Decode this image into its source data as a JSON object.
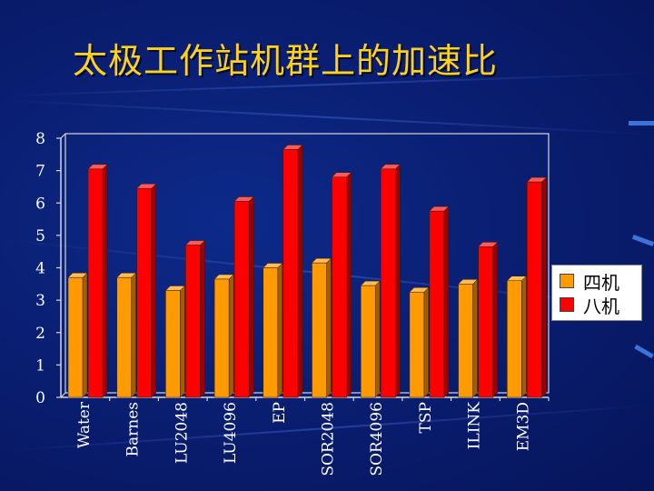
{
  "title": "太极工作站机群上的加速比",
  "colors": {
    "series_1": "#ff9a00",
    "series_2": "#ff0000",
    "title": "#ffd21a",
    "background": "#0a1f73"
  },
  "chart_data": {
    "type": "bar",
    "title": "",
    "xlabel": "",
    "ylabel": "",
    "ylim": [
      0,
      8
    ],
    "yticks": [
      "0",
      "1",
      "2",
      "3",
      "4",
      "5",
      "6",
      "7",
      "8"
    ],
    "grid": false,
    "legend_position": "right",
    "style": "3d-clustered",
    "categories": [
      "Water",
      "Barnes",
      "LU2048",
      "LU4096",
      "EP",
      "SOR2048",
      "SOR4096",
      "TSP",
      "ILINK",
      "EM3D"
    ],
    "series": [
      {
        "name": "四机",
        "values": [
          3.7,
          3.7,
          3.3,
          3.65,
          4.0,
          4.15,
          3.45,
          3.25,
          3.5,
          3.6
        ]
      },
      {
        "name": "八机",
        "values": [
          7.05,
          6.45,
          4.7,
          6.05,
          7.65,
          6.8,
          7.05,
          5.75,
          4.65,
          6.65
        ]
      }
    ]
  }
}
